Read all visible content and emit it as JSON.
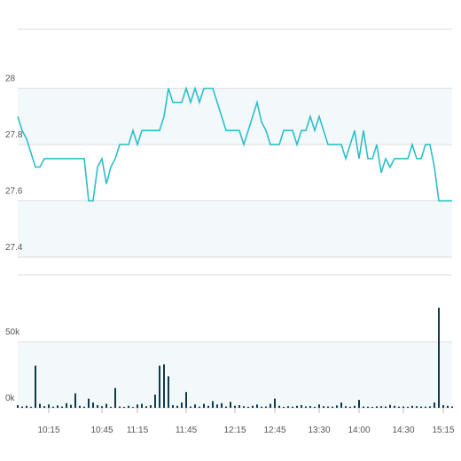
{
  "chart_data": [
    {
      "type": "line",
      "color": "#2cbfca",
      "grid": true,
      "categories": [
        null,
        null,
        null,
        null,
        null,
        null,
        null,
        "10:15",
        null,
        null,
        null,
        null,
        null,
        null,
        null,
        null,
        null,
        null,
        null,
        "10:45",
        null,
        null,
        null,
        null,
        null,
        null,
        null,
        "11:15",
        null,
        null,
        null,
        null,
        null,
        null,
        null,
        null,
        null,
        null,
        "11:45",
        null,
        null,
        null,
        null,
        null,
        null,
        null,
        null,
        null,
        null,
        "12:15",
        null,
        null,
        null,
        null,
        null,
        null,
        null,
        null,
        "12:45",
        null,
        null,
        null,
        null,
        null,
        null,
        null,
        null,
        null,
        "13:30",
        null,
        null,
        null,
        null,
        null,
        null,
        null,
        null,
        "14:00",
        null,
        null,
        null,
        null,
        null,
        null,
        null,
        null,
        null,
        "14:30",
        null,
        null,
        null,
        null,
        null,
        null,
        null,
        null,
        "15:15",
        null,
        null
      ],
      "values": [
        27.9,
        27.85,
        27.82,
        27.77,
        27.72,
        27.72,
        27.75,
        27.75,
        27.75,
        27.75,
        27.75,
        27.75,
        27.75,
        27.75,
        27.75,
        27.75,
        27.6,
        27.6,
        27.72,
        27.75,
        27.66,
        27.72,
        27.75,
        27.8,
        27.8,
        27.8,
        27.85,
        27.8,
        27.85,
        27.85,
        27.85,
        27.85,
        27.85,
        27.9,
        28,
        27.95,
        27.95,
        27.95,
        28,
        27.95,
        28,
        27.95,
        28,
        28,
        28,
        27.95,
        27.9,
        27.85,
        27.85,
        27.85,
        27.85,
        27.8,
        27.85,
        27.9,
        27.95,
        27.88,
        27.85,
        27.8,
        27.8,
        27.8,
        27.85,
        27.85,
        27.85,
        27.8,
        27.85,
        27.85,
        27.9,
        27.85,
        27.9,
        27.85,
        27.8,
        27.8,
        27.8,
        27.8,
        27.75,
        27.8,
        27.85,
        27.75,
        27.85,
        27.75,
        27.75,
        27.8,
        27.7,
        27.75,
        27.72,
        27.75,
        27.75,
        27.75,
        27.75,
        27.8,
        27.75,
        27.75,
        27.8,
        27.8,
        27.72,
        27.6,
        27.6,
        27.6,
        27.6
      ],
      "ylim": [
        27.4,
        28.21
      ],
      "yticks": [
        27.4,
        27.6,
        27.8,
        28
      ]
    },
    {
      "type": "bar",
      "color": "#0d3b4c",
      "grid": true,
      "values": [
        2000,
        1000,
        1500,
        800,
        32000,
        3000,
        1200,
        2500,
        900,
        1800,
        1000,
        3500,
        2200,
        11000,
        1500,
        900,
        7000,
        4000,
        2000,
        1200,
        3000,
        800,
        15000,
        1000,
        700,
        1500,
        600,
        2500,
        3000,
        1200,
        2000,
        10000,
        32000,
        33000,
        24000,
        2000,
        1500,
        4000,
        12000,
        1000,
        2500,
        900,
        3000,
        1500,
        5000,
        2500,
        3500,
        1000,
        4500,
        1500,
        2000,
        1200,
        800,
        1500,
        2500,
        900,
        1000,
        3000,
        7000,
        1500,
        700,
        1200,
        900,
        1500,
        2000,
        1000,
        1300,
        800,
        2500,
        1200,
        1000,
        900,
        1800,
        4000,
        1200,
        800,
        1500,
        6000,
        1000,
        900,
        700,
        1100,
        1200,
        1000,
        2200,
        1500,
        900,
        1000,
        800,
        1500,
        1200,
        1000,
        900,
        1100,
        4000,
        76000,
        2000,
        1500,
        1000
      ],
      "ylim": [
        0,
        101000
      ],
      "yticks": [
        {
          "value": 0,
          "label": "0k"
        },
        {
          "value": 50000,
          "label": "50k"
        }
      ]
    }
  ]
}
